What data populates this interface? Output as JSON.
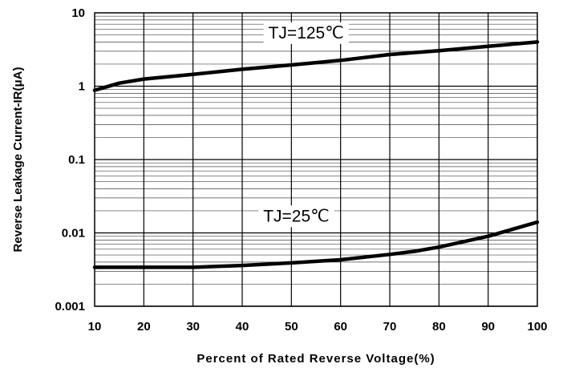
{
  "chart_data": {
    "type": "line",
    "xlabel": "Percent of Rated Reverse Voltage(%)",
    "ylabel": "Reverse Leakage Current-IR(μA)",
    "xlim": [
      10,
      100
    ],
    "ylim": [
      0.001,
      10
    ],
    "yscale": "log",
    "x_ticks": [
      "10",
      "20",
      "30",
      "40",
      "50",
      "60",
      "70",
      "80",
      "90",
      "100"
    ],
    "y_ticks": [
      "0.001",
      "0.01",
      "0.1",
      "1",
      "10"
    ],
    "grid": true,
    "series": [
      {
        "name": "TJ=125℃",
        "x": [
          10,
          15,
          20,
          30,
          40,
          50,
          60,
          70,
          80,
          90,
          100
        ],
        "y": [
          0.88,
          1.1,
          1.25,
          1.45,
          1.7,
          1.95,
          2.25,
          2.7,
          3.05,
          3.5,
          4.0
        ]
      },
      {
        "name": "TJ=25℃",
        "x": [
          10,
          20,
          30,
          40,
          50,
          60,
          70,
          75,
          80,
          90,
          100
        ],
        "y": [
          0.0034,
          0.0034,
          0.0034,
          0.0036,
          0.0039,
          0.0043,
          0.0051,
          0.0056,
          0.0064,
          0.009,
          0.014
        ]
      }
    ]
  }
}
